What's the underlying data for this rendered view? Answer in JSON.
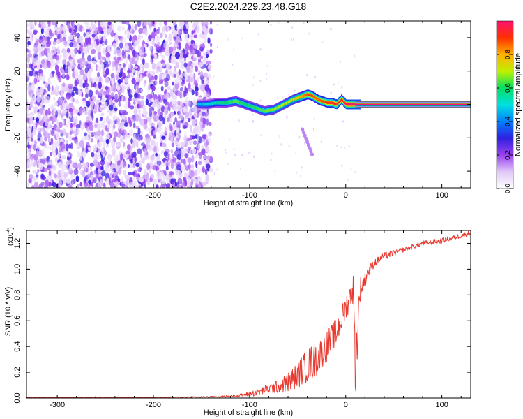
{
  "figure": {
    "title": "C2E2.2024.229.23.48.G18"
  },
  "colors": {
    "snr_line": "#e8392f",
    "background": "#ffffff",
    "colorbar_stops": [
      "#ffffff",
      "#e0c8f8",
      "#9a40f0",
      "#3020e0",
      "#0080ff",
      "#00e0e0",
      "#00e060",
      "#c0f000",
      "#ffb000",
      "#ff3000",
      "#ff1070"
    ]
  },
  "chart_data": [
    {
      "type": "heatmap",
      "title": "C2E2.2024.229.23.48.G18",
      "xlabel": "Height of straight line (km)",
      "ylabel": "Frequency (Hz)",
      "xlim": [
        -332,
        130
      ],
      "ylim": [
        -50,
        50
      ],
      "x_ticks": [
        "-300",
        "-200",
        "-100",
        "0",
        "100"
      ],
      "x_tick_values": [
        -300,
        -200,
        -100,
        0,
        100
      ],
      "y_ticks": [
        "-40",
        "-20",
        "0",
        "20",
        "40"
      ],
      "y_tick_values": [
        -40,
        -20,
        0,
        20,
        40
      ],
      "colorbar": {
        "label": "Normalized spectral amplitude",
        "range": [
          0,
          1
        ],
        "ticks": [
          "0.0",
          "0.2",
          "0.4",
          "0.6",
          "0.8"
        ],
        "tick_values": [
          0,
          0.2,
          0.4,
          0.6,
          0.8
        ]
      },
      "noise_region": {
        "x_range": [
          -332,
          -140
        ],
        "amplitude": [
          0.05,
          0.3
        ]
      },
      "dominant_frequency_track": {
        "x": [
          -155,
          -145,
          -135,
          -125,
          -115,
          -105,
          -95,
          -85,
          -75,
          -65,
          -55,
          -45,
          -40,
          -35,
          -30,
          -25,
          -20,
          -15,
          -10,
          -5,
          0,
          5,
          10,
          20,
          40,
          60,
          80,
          100,
          130
        ],
        "frequency": [
          0,
          0,
          1,
          1,
          2,
          0,
          -2,
          -4,
          -3,
          0,
          3,
          5,
          6,
          5,
          3,
          2,
          1,
          1,
          0,
          3,
          0,
          0,
          0,
          0,
          0,
          0,
          0,
          0,
          0
        ],
        "amplitude": [
          0.45,
          0.5,
          0.55,
          0.6,
          0.65,
          0.6,
          0.62,
          0.65,
          0.68,
          0.7,
          0.75,
          0.82,
          0.9,
          0.88,
          0.85,
          0.88,
          0.9,
          0.92,
          0.95,
          0.9,
          1,
          1,
          1,
          1,
          1,
          1,
          1,
          1,
          1
        ]
      },
      "secondary_feature": {
        "x": [
          -45,
          -35
        ],
        "frequency": [
          -15,
          -30
        ]
      }
    },
    {
      "type": "line",
      "xlabel": "Height of straight line (km)",
      "ylabel": "SNR (10 * v/v)",
      "y_multiplier": "(x10",
      "y_multiplier_exp": "4",
      "y_multiplier_close": ")",
      "xlim": [
        -332,
        130
      ],
      "ylim": [
        0,
        1.3
      ],
      "x_ticks": [
        "-300",
        "-200",
        "-100",
        "0",
        "100"
      ],
      "x_tick_values": [
        -300,
        -200,
        -100,
        0,
        100
      ],
      "y_ticks": [
        "0.0",
        "0.2",
        "0.4",
        "0.6",
        "0.8",
        "1.0",
        "1.2"
      ],
      "y_tick_values": [
        0,
        0.2,
        0.4,
        0.6,
        0.8,
        1.0,
        1.2
      ],
      "series": [
        {
          "color": "#e8392f",
          "x": [
            -332,
            -250,
            -200,
            -150,
            -130,
            -110,
            -100,
            -90,
            -80,
            -70,
            -60,
            -50,
            -45,
            -40,
            -35,
            -30,
            -25,
            -20,
            -15,
            -10,
            -5,
            0,
            5,
            8,
            10,
            12,
            15,
            20,
            25,
            30,
            40,
            60,
            80,
            100,
            120,
            130
          ],
          "values": [
            0.005,
            0.005,
            0.005,
            0.008,
            0.01,
            0.02,
            0.03,
            0.05,
            0.07,
            0.09,
            0.12,
            0.18,
            0.22,
            0.25,
            0.28,
            0.3,
            0.35,
            0.4,
            0.45,
            0.5,
            0.6,
            0.7,
            0.8,
            0.85,
            0.2,
            0.5,
            0.85,
            0.92,
            1.0,
            1.05,
            1.1,
            1.15,
            1.2,
            1.22,
            1.26,
            1.28
          ],
          "noise_amplitude": [
            0.002,
            0.003,
            0.003,
            0.004,
            0.006,
            0.012,
            0.02,
            0.03,
            0.04,
            0.05,
            0.08,
            0.1,
            0.12,
            0.13,
            0.14,
            0.14,
            0.12,
            0.12,
            0.12,
            0.12,
            0.1,
            0.1,
            0.1,
            0.12,
            0.2,
            0.25,
            0.1,
            0.06,
            0.04,
            0.03,
            0.03,
            0.02,
            0.02,
            0.02,
            0.02,
            0.02
          ]
        }
      ]
    }
  ]
}
